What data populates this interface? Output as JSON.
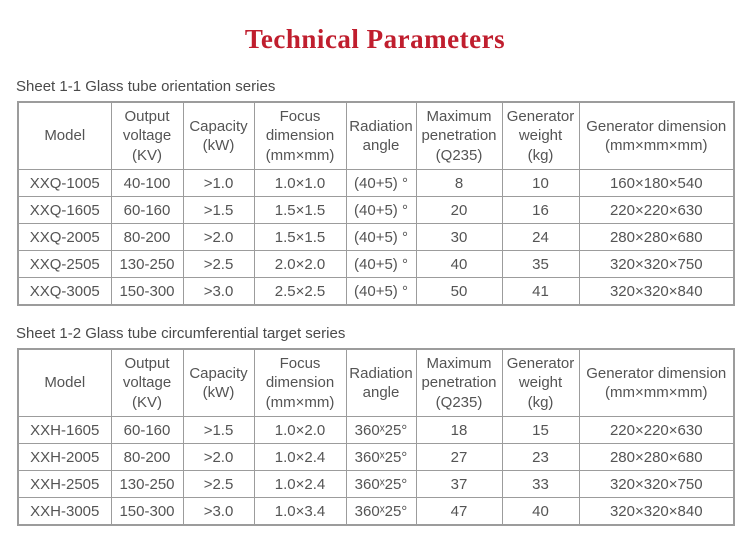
{
  "page_title": "Technical Parameters",
  "colors": {
    "title_red": "#c01e2e",
    "body_text": "#545454",
    "table_border": "#9c9c9c"
  },
  "tables": [
    {
      "caption": "Sheet 1-1 Glass tube orientation series",
      "headers": [
        "Model",
        "Output\nvoltage\n(KV)",
        "Capacity\n(kW)",
        "Focus\ndimension\n(mm×mm)",
        "Radiation\nangle",
        "Maximum\npenetration\n(Q235)",
        "Generator\nweight\n(kg)",
        "Generator dimension\n(mm×mm×mm)"
      ],
      "rows": [
        [
          "XXQ-1005",
          "40-100",
          ">1.0",
          "1.0×1.0",
          "(40+5) °",
          "8",
          "10",
          "160×180×540"
        ],
        [
          "XXQ-1605",
          "60-160",
          ">1.5",
          "1.5×1.5",
          "(40+5) °",
          "20",
          "16",
          "220×220×630"
        ],
        [
          "XXQ-2005",
          "80-200",
          ">2.0",
          "1.5×1.5",
          "(40+5) °",
          "30",
          "24",
          "280×280×680"
        ],
        [
          "XXQ-2505",
          "130-250",
          ">2.5",
          "2.0×2.0",
          "(40+5) °",
          "40",
          "35",
          "320×320×750"
        ],
        [
          "XXQ-3005",
          "150-300",
          ">3.0",
          "2.5×2.5",
          "(40+5) °",
          "50",
          "41",
          "320×320×840"
        ]
      ]
    },
    {
      "caption": "Sheet 1-2 Glass tube circumferential target series",
      "headers": [
        "Model",
        "Output\nvoltage\n(KV)",
        "Capacity\n(kW)",
        "Focus\ndimension\n(mm×mm)",
        "Radiation\nangle",
        "Maximum\npenetration\n(Q235)",
        "Generator\nweight\n(kg)",
        "Generator dimension\n(mm×mm×mm)"
      ],
      "rows": [
        [
          "XXH-1605",
          "60-160",
          ">1.5",
          "1.0×2.0",
          "360ˣ25°",
          "18",
          "15",
          "220×220×630"
        ],
        [
          "XXH-2005",
          "80-200",
          ">2.0",
          "1.0×2.4",
          "360ˣ25°",
          "27",
          "23",
          "280×280×680"
        ],
        [
          "XXH-2505",
          "130-250",
          ">2.5",
          "1.0×2.4",
          "360ˣ25°",
          "37",
          "33",
          "320×320×750"
        ],
        [
          "XXH-3005",
          "150-300",
          ">3.0",
          "1.0×3.4",
          "360ˣ25°",
          "47",
          "40",
          "320×320×840"
        ]
      ]
    }
  ]
}
